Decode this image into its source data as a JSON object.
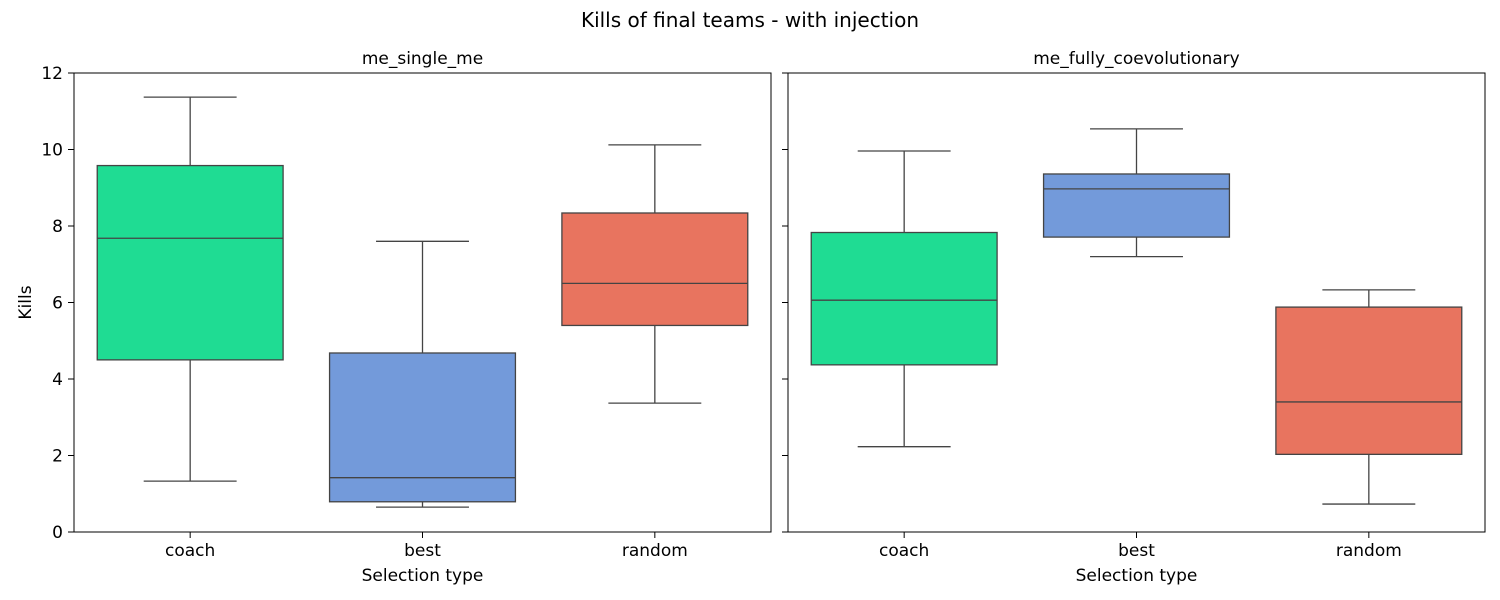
{
  "figure": {
    "title": "Kills of final teams - with injection"
  },
  "colors": {
    "coach": "#1fdc93",
    "best": "#739ada",
    "random": "#e8745f",
    "line": "#444444",
    "frame": "#000000"
  },
  "chart_data": [
    {
      "type": "box",
      "title": "me_single_me",
      "xlabel": "Selection type",
      "ylabel": "Kills",
      "ylim": [
        0,
        12
      ],
      "yticks": [
        0,
        2,
        4,
        6,
        8,
        10,
        12
      ],
      "show_ytick_labels": true,
      "categories": [
        "coach",
        "best",
        "random"
      ],
      "boxes": [
        {
          "category": "coach",
          "whisker_low": 1.33,
          "q1": 4.5,
          "median": 7.68,
          "q3": 9.58,
          "whisker_high": 11.37
        },
        {
          "category": "best",
          "whisker_low": 0.65,
          "q1": 0.79,
          "median": 1.42,
          "q3": 4.68,
          "whisker_high": 7.6
        },
        {
          "category": "random",
          "whisker_low": 3.37,
          "q1": 5.4,
          "median": 6.5,
          "q3": 8.34,
          "whisker_high": 10.12
        }
      ]
    },
    {
      "type": "box",
      "title": "me_fully_coevolutionary",
      "xlabel": "Selection type",
      "ylabel": "",
      "ylim": [
        0,
        12
      ],
      "yticks": [
        0,
        2,
        4,
        6,
        8,
        10,
        12
      ],
      "show_ytick_labels": false,
      "categories": [
        "coach",
        "best",
        "random"
      ],
      "boxes": [
        {
          "category": "coach",
          "whisker_low": 2.23,
          "q1": 4.37,
          "median": 6.06,
          "q3": 7.83,
          "whisker_high": 9.96
        },
        {
          "category": "best",
          "whisker_low": 7.2,
          "q1": 7.71,
          "median": 8.97,
          "q3": 9.36,
          "whisker_high": 10.54
        },
        {
          "category": "random",
          "whisker_low": 0.73,
          "q1": 2.03,
          "median": 3.4,
          "q3": 5.88,
          "whisker_high": 6.33
        }
      ]
    }
  ]
}
